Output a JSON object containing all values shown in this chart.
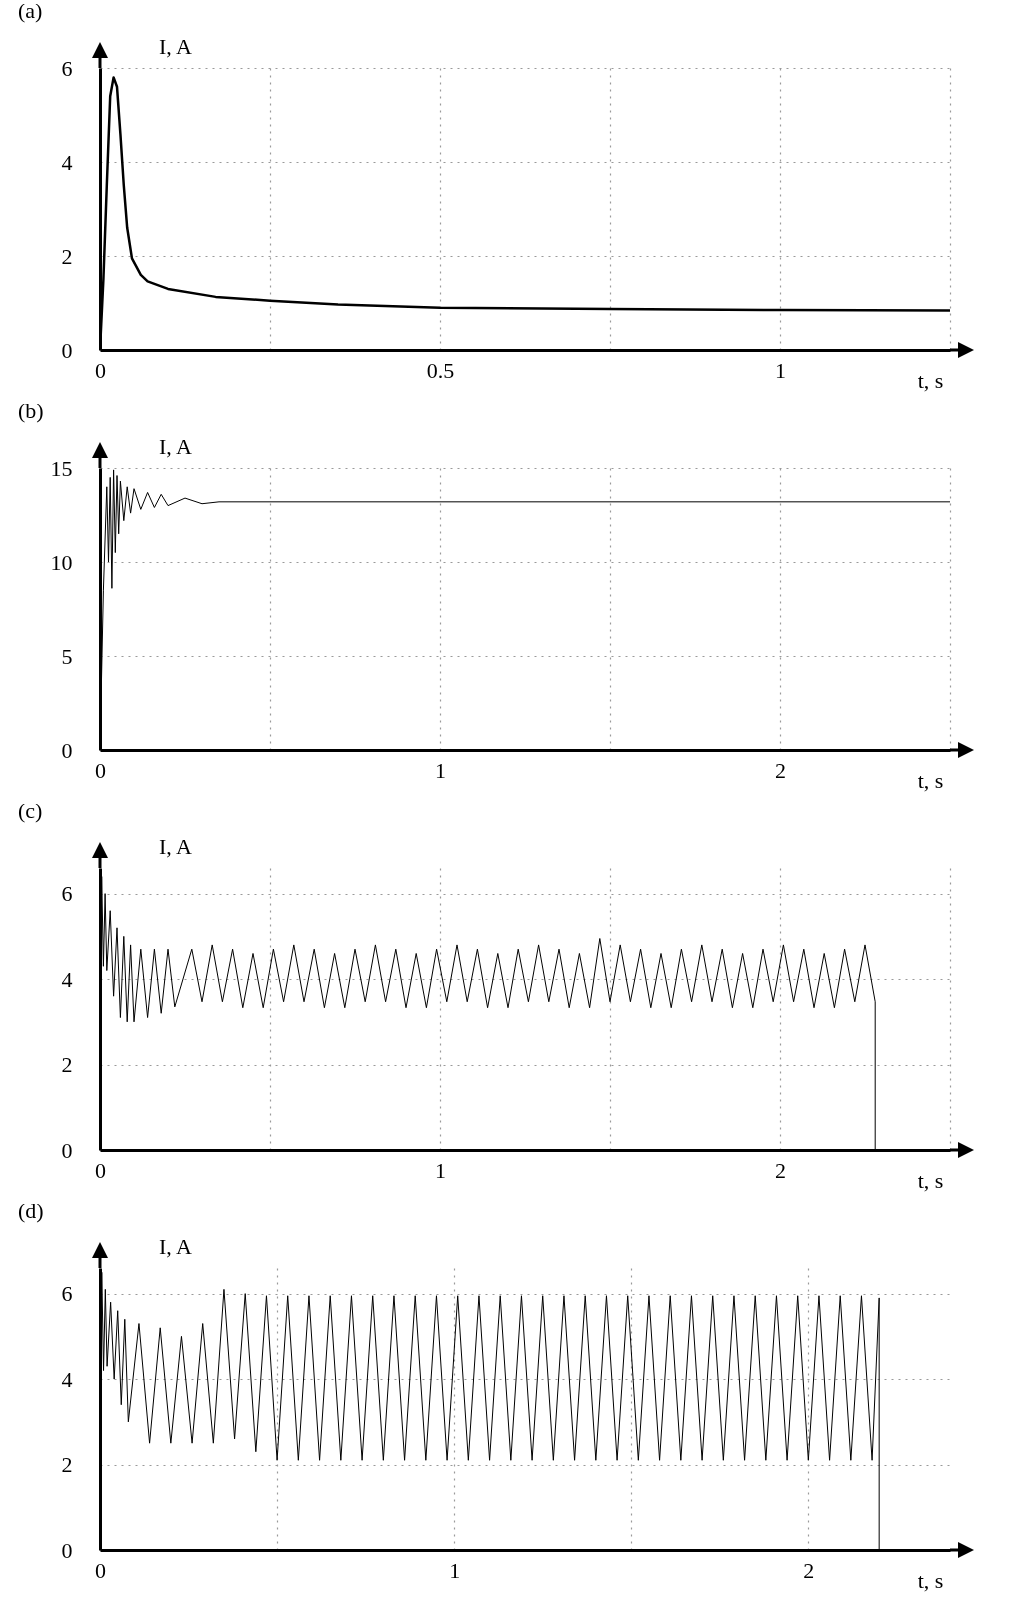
{
  "chart_data": [
    {
      "type": "line",
      "title": "(a)",
      "xlabel": "t, s",
      "ylabel": "I, A",
      "color": "#000000",
      "grid": true,
      "xlim": [
        0,
        1.25
      ],
      "xticks": [
        0,
        {
          "value": 0.25,
          "label": null
        },
        0.5,
        {
          "value": 0.75,
          "label": null
        },
        1,
        {
          "value": 1.25,
          "label": null
        }
      ],
      "ylim": [
        0,
        6
      ],
      "yticks": [
        0,
        2,
        4,
        6
      ],
      "x": [
        0,
        0.005,
        0.01,
        0.015,
        0.02,
        0.025,
        0.03,
        0.035,
        0.04,
        0.047,
        0.06,
        0.07,
        0.1,
        0.17,
        0.25,
        0.35,
        0.5,
        0.75,
        1,
        1.25
      ],
      "values": [
        0,
        1.5,
        3.5,
        5.4,
        5.8,
        5.6,
        4.6,
        3.5,
        2.6,
        1.95,
        1.6,
        1.46,
        1.3,
        1.13,
        1.05,
        0.97,
        0.9,
        0.87,
        0.85,
        0.84
      ]
    },
    {
      "type": "line",
      "title": "(b)",
      "xlabel": "t, s",
      "ylabel": "I, A",
      "color": "#000000",
      "grid": true,
      "xlim": [
        0,
        2.5
      ],
      "xticks": [
        0,
        {
          "value": 0.5,
          "label": null
        },
        1,
        {
          "value": 1.5,
          "label": null
        },
        2,
        {
          "value": 2.5,
          "label": null
        }
      ],
      "ylim": [
        0,
        15
      ],
      "yticks": [
        0,
        5,
        10,
        15
      ],
      "x": [
        0,
        0.01,
        0.02,
        0.025,
        0.03,
        0.035,
        0.04,
        0.045,
        0.05,
        0.055,
        0.06,
        0.07,
        0.08,
        0.09,
        0.1,
        0.12,
        0.14,
        0.16,
        0.18,
        0.2,
        0.25,
        0.3,
        0.35,
        0.5,
        1,
        1.5,
        2,
        2.5
      ],
      "values": [
        0,
        8.5,
        14.0,
        10.0,
        14.5,
        8.6,
        14.9,
        10.5,
        14.6,
        11.5,
        14.3,
        12.2,
        14.0,
        12.6,
        13.9,
        12.8,
        13.7,
        12.9,
        13.6,
        13.0,
        13.4,
        13.1,
        13.2,
        13.2,
        13.2,
        13.2,
        13.2,
        13.2
      ]
    },
    {
      "type": "line",
      "title": "(c)",
      "xlabel": "t, s",
      "ylabel": "I, A",
      "color": "#000000",
      "grid": true,
      "xlim": [
        0,
        2.5
      ],
      "xticks": [
        0,
        {
          "value": 0.5,
          "label": null
        },
        1,
        {
          "value": 1.5,
          "label": null
        },
        2,
        {
          "value": 2.5,
          "label": null
        }
      ],
      "ylim": [
        0,
        6.6
      ],
      "yticks": [
        0,
        2,
        4,
        6
      ],
      "x": [
        0,
        0.005,
        0.01,
        0.015,
        0.02,
        0.03,
        0.04,
        0.05,
        0.06,
        0.07,
        0.08,
        0.09,
        0.1,
        0.12,
        0.14,
        0.16,
        0.18,
        0.2,
        0.22,
        0.27,
        0.3,
        0.33,
        0.36,
        0.39,
        0.42,
        0.45,
        0.48,
        0.51,
        0.54,
        0.57,
        0.6,
        0.63,
        0.66,
        0.69,
        0.72,
        0.75,
        0.78,
        0.81,
        0.84,
        0.87,
        0.9,
        0.93,
        0.96,
        0.99,
        1.02,
        1.05,
        1.08,
        1.11,
        1.14,
        1.17,
        1.2,
        1.23,
        1.26,
        1.29,
        1.32,
        1.35,
        1.38,
        1.41,
        1.44,
        1.47,
        1.5,
        1.53,
        1.56,
        1.59,
        1.62,
        1.65,
        1.68,
        1.71,
        1.74,
        1.77,
        1.8,
        1.83,
        1.86,
        1.89,
        1.92,
        1.95,
        1.98,
        2.01,
        2.04,
        2.07,
        2.1,
        2.13,
        2.16,
        2.19,
        2.22,
        2.25,
        2.28,
        2.28
      ],
      "values": [
        0,
        6.4,
        4.3,
        6.0,
        4.2,
        5.6,
        3.6,
        5.2,
        3.1,
        5.0,
        3.0,
        4.8,
        3.0,
        4.7,
        3.1,
        4.7,
        3.2,
        4.7,
        3.35,
        4.7,
        3.47,
        4.8,
        3.47,
        4.7,
        3.33,
        4.6,
        3.33,
        4.7,
        3.47,
        4.8,
        3.47,
        4.7,
        3.33,
        4.6,
        3.33,
        4.7,
        3.47,
        4.8,
        3.47,
        4.7,
        3.33,
        4.6,
        3.33,
        4.7,
        3.47,
        4.8,
        3.47,
        4.7,
        3.33,
        4.6,
        3.33,
        4.7,
        3.47,
        4.8,
        3.47,
        4.7,
        3.33,
        4.6,
        3.33,
        4.95,
        3.47,
        4.8,
        3.47,
        4.7,
        3.33,
        4.6,
        3.33,
        4.7,
        3.47,
        4.8,
        3.47,
        4.7,
        3.33,
        4.6,
        3.33,
        4.7,
        3.47,
        4.8,
        3.47,
        4.7,
        3.33,
        4.6,
        3.33,
        4.7,
        3.47,
        4.8,
        3.47,
        0
      ]
    },
    {
      "type": "line",
      "title": "(d)",
      "xlabel": "t, s",
      "ylabel": "I, A",
      "color": "#000000",
      "grid": true,
      "xlim": [
        0,
        2.4
      ],
      "xticks": [
        0,
        {
          "value": 0.5,
          "label": null
        },
        1,
        {
          "value": 1.5,
          "label": null
        },
        2
      ],
      "ylim": [
        0,
        6.6
      ],
      "yticks": [
        0,
        2,
        4,
        6
      ],
      "x": [
        0,
        0.005,
        0.01,
        0.015,
        0.02,
        0.03,
        0.04,
        0.05,
        0.06,
        0.07,
        0.08,
        0.11,
        0.14,
        0.17,
        0.2,
        0.23,
        0.26,
        0.29,
        0.32,
        0.35,
        0.38,
        0.41,
        0.44,
        0.47,
        0.5,
        0.53,
        0.56,
        0.59,
        0.62,
        0.65,
        0.68,
        0.71,
        0.74,
        0.77,
        0.8,
        0.83,
        0.86,
        0.89,
        0.92,
        0.95,
        0.98,
        1.01,
        1.04,
        1.07,
        1.1,
        1.13,
        1.16,
        1.19,
        1.22,
        1.25,
        1.28,
        1.31,
        1.34,
        1.37,
        1.4,
        1.43,
        1.46,
        1.49,
        1.52,
        1.55,
        1.58,
        1.61,
        1.64,
        1.67,
        1.7,
        1.73,
        1.76,
        1.79,
        1.82,
        1.85,
        1.88,
        1.91,
        1.94,
        1.97,
        2.0,
        2.03,
        2.06,
        2.09,
        2.12,
        2.15,
        2.18,
        2.2,
        2.2
      ],
      "values": [
        0,
        6.5,
        4.2,
        6.1,
        4.3,
        5.8,
        4.0,
        5.6,
        3.4,
        5.4,
        3.0,
        5.3,
        2.5,
        5.2,
        2.5,
        5.0,
        2.5,
        5.3,
        2.5,
        6.1,
        2.6,
        6.0,
        2.3,
        5.95,
        2.1,
        5.95,
        2.1,
        5.95,
        2.1,
        5.95,
        2.1,
        5.95,
        2.1,
        5.95,
        2.1,
        5.95,
        2.1,
        5.95,
        2.1,
        5.95,
        2.1,
        5.95,
        2.1,
        5.95,
        2.1,
        5.95,
        2.1,
        5.95,
        2.1,
        5.95,
        2.1,
        5.95,
        2.1,
        5.95,
        2.1,
        5.95,
        2.1,
        5.95,
        2.1,
        5.95,
        2.1,
        5.95,
        2.1,
        5.95,
        2.1,
        5.95,
        2.1,
        5.95,
        2.1,
        5.95,
        2.1,
        5.95,
        2.1,
        5.95,
        2.1,
        5.95,
        2.1,
        5.95,
        2.1,
        5.95,
        2.1,
        5.9,
        0
      ]
    }
  ]
}
